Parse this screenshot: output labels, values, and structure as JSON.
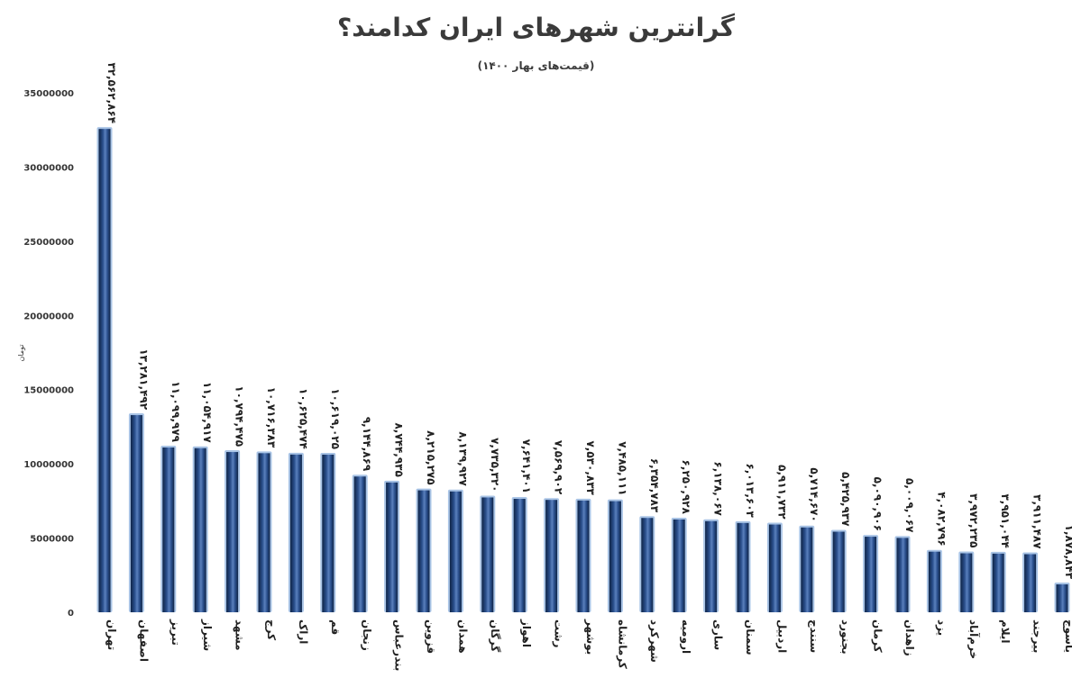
{
  "chart_data": {
    "type": "bar",
    "title": "گرانترین شهرهای ایران کدامند؟",
    "subtitle": "(قیمت‌های بهار ۱۴۰۰)",
    "ylabel": "تومان",
    "ylim": [
      0,
      35000000
    ],
    "yticks": [
      "0",
      "5000000",
      "10000000",
      "15000000",
      "20000000",
      "25000000",
      "30000000",
      "35000000"
    ],
    "grid": false,
    "categories": [
      "تهران",
      "اصفهان",
      "تبریز",
      "شیراز",
      "مشهد",
      "کرج",
      "اراک",
      "قم",
      "زنجان",
      "بندرعباس",
      "قزوین",
      "همدان",
      "گرگان",
      "اهواز",
      "رشت",
      "بوشهر",
      "کرمانشاه",
      "شهرکرد",
      "ارومیه",
      "ساری",
      "سمنان",
      "اردبیل",
      "سنندج",
      "بجنورد",
      "کرمان",
      "زاهدان",
      "یزد",
      "خرم‌آباد",
      "ایلام",
      "بیرجند",
      "یاسوج"
    ],
    "values": [
      32562864,
      13281492,
      11099979,
      11054917,
      10794475,
      10716383,
      10625474,
      10619025,
      9144869,
      8744935,
      8215275,
      8139927,
      7735320,
      7641401,
      7569902,
      7530833,
      7485111,
      6354783,
      6250928,
      6138067,
      6013603,
      5911732,
      5714670,
      5425937,
      5090906,
      5009067,
      4082796,
      3972235,
      3951044,
      3911487,
      1878843
    ],
    "data_labels": [
      "۳۲,۵۶۲,۸۶۴",
      "۱۳,۲۸۱,۴۹۲",
      "۱۱,۰۹۹,۹۷۹",
      "۱۱,۰۵۴,۹۱۷",
      "۱۰,۷۹۴,۴۷۵",
      "۱۰,۷۱۶,۳۸۳",
      "۱۰,۶۲۵,۴۷۴",
      "۱۰,۶۱۹,۰۲۵",
      "۹,۱۴۴,۸۶۹",
      "۸,۷۴۴,۹۳۵",
      "۸,۲۱۵,۲۷۵",
      "۸,۱۳۹,۹۲۷",
      "۷,۷۳۵,۳۲۰",
      "۷,۶۴۱,۴۰۱",
      "۷,۵۶۹,۹۰۲",
      "۷,۵۳۰,۸۳۳",
      "۷,۴۸۵,۱۱۱",
      "۶,۳۵۴,۷۸۳",
      "۶,۲۵۰,۹۲۸",
      "۶,۱۳۸,۰۶۷",
      "۶,۰۱۳,۶۰۳",
      "۵,۹۱۱,۷۳۲",
      "۵,۷۱۴,۶۷۰",
      "۵,۴۲۵,۹۳۷",
      "۵,۰۹۰,۹۰۶",
      "۵,۰۰۹,۰۶۷",
      "۴,۰۸۲,۷۹۶",
      "۳,۹۷۲,۲۳۵",
      "۳,۹۵۱,۰۴۴",
      "۳,۹۱۱,۴۸۷",
      "۱,۸۷۸,۸۴۳"
    ],
    "colors": {
      "bar": "#1f3f72",
      "bar_edge": "#a9c4e6",
      "bar_highlight": "#6b8fc8"
    }
  }
}
